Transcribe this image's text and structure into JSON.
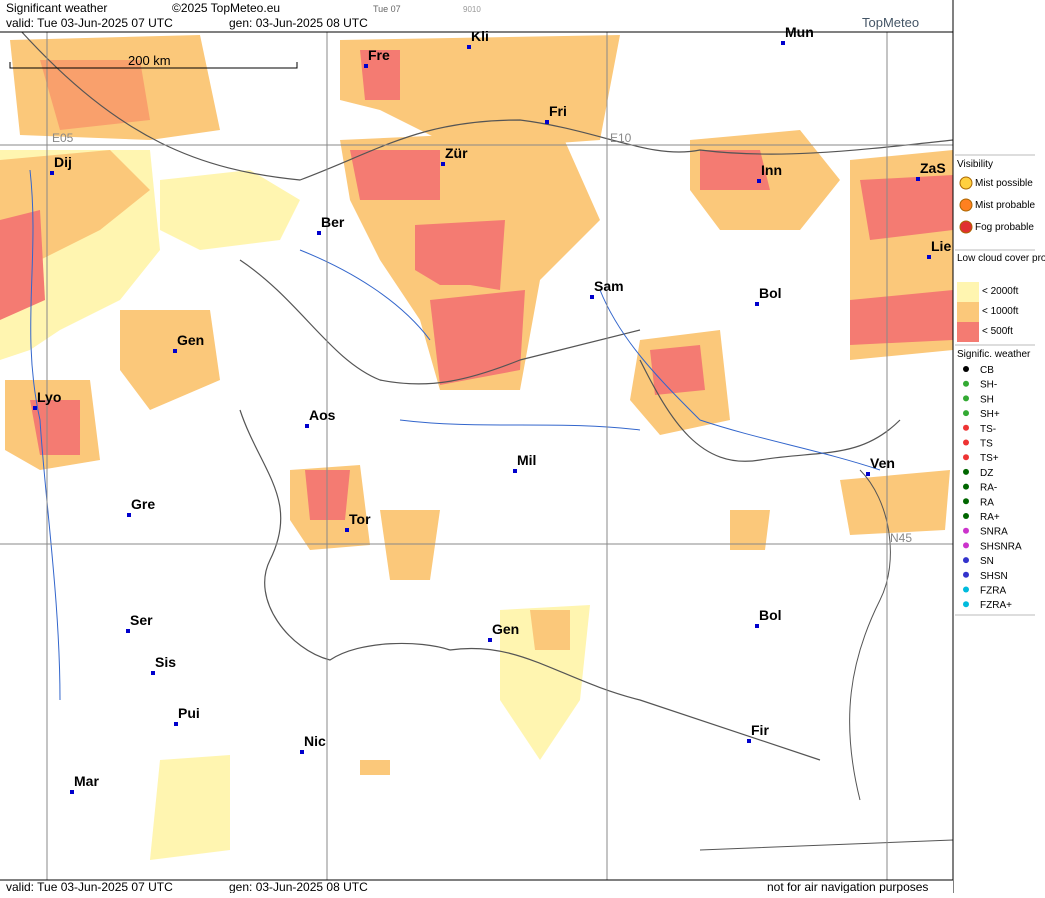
{
  "header": {
    "title": "Significant weather",
    "copyright": "©2025 TopMeteo.eu",
    "step": "Tue 07",
    "code": "9010",
    "valid": "valid:  Tue  03-Jun-2025  07 UTC",
    "gen": "gen: 03-Jun-2025 08 UTC",
    "brand": "TopMeteo"
  },
  "map": {
    "scale": "200 km",
    "grid_labels": [
      "E05",
      "E10",
      "N45"
    ],
    "cities": [
      "Kli",
      "Mun",
      "Fre",
      "Fri",
      "Dij",
      "Zür",
      "Inn",
      "ZaS",
      "Ber",
      "Lie",
      "Sam",
      "Bol",
      "Gen",
      "Lyo",
      "Aos",
      "Mil",
      "Ven",
      "Gre",
      "Tor",
      "Ser",
      "Sis",
      "Gen",
      "Bol",
      "Pui",
      "Nic",
      "Fir",
      "Mar"
    ]
  },
  "legend": {
    "visibility": {
      "title": "Visibility",
      "items": [
        "Mist possible",
        "Mist probable",
        "Fog probable"
      ]
    },
    "low_cloud": {
      "title": "Low cloud cover probable",
      "items": [
        "< 2000ft",
        "< 1000ft",
        "<  500ft"
      ]
    },
    "weather": {
      "title": "Signific. weather",
      "items": [
        "CB",
        "SH-",
        "SH",
        "SH+",
        "TS-",
        "TS",
        "TS+",
        "DZ",
        "RA-",
        "RA",
        "RA+",
        "SNRA",
        "SHSNRA",
        "SN",
        "SHSN",
        "FZRA",
        "FZRA+"
      ]
    }
  },
  "footer": {
    "valid": "valid:  Tue  03-Jun-2025  07 UTC",
    "gen": "gen: 03-Jun-2025 08 UTC",
    "note": "not for air navigation purposes"
  }
}
